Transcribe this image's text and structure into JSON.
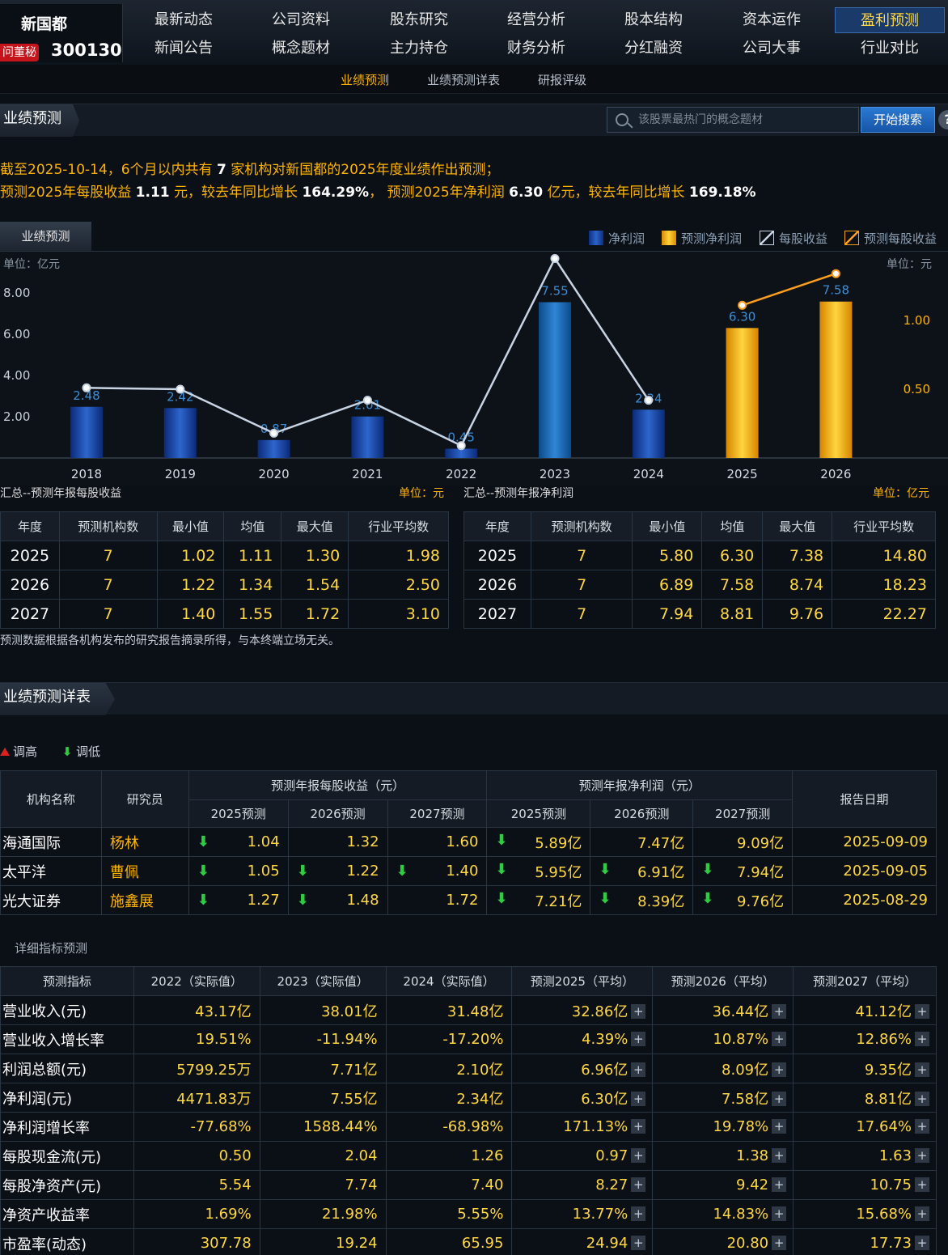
{
  "stock": {
    "name": "新国都",
    "badge": "问董秘",
    "code": "300130"
  },
  "nav": {
    "row1": [
      "最新动态",
      "公司资料",
      "股东研究",
      "经营分析",
      "股本结构",
      "资本运作",
      "盈利预测"
    ],
    "row2": [
      "新闻公告",
      "概念题材",
      "主力持仓",
      "财务分析",
      "分红融资",
      "公司大事",
      "行业对比"
    ],
    "active": "盈利预测"
  },
  "subnav": [
    "业绩预测",
    "业绩预测详表",
    "研报评级"
  ],
  "section1": {
    "title": "业绩预测"
  },
  "search": {
    "placeholder": "该股票最热门的概念题材",
    "button": "开始搜索",
    "help": "?"
  },
  "summary": {
    "l1a": "截至2025-10-14，6个月以内共有 ",
    "l1b": "7",
    "l1c": " 家机构对新国都的2025年度业绩作出预测；",
    "l2a": "预测2025年每股收益 ",
    "l2b": "1.11",
    "l2c": " 元，较去年同比增长 ",
    "l2d": "164.29%",
    "l2e": "， 预测2025年净利润 ",
    "l2f": "6.30",
    "l2g": " 亿元，较去年同比增长 ",
    "l2h": "169.18%"
  },
  "chart_tab": "业绩预测",
  "legend": [
    "净利润",
    "预测净利润",
    "每股收益",
    "预测每股收益"
  ],
  "units": {
    "left": "单位：亿元",
    "right": "单位：元"
  },
  "chart_data": {
    "type": "bar",
    "categories": [
      "2018",
      "2019",
      "2020",
      "2021",
      "2022",
      "2023",
      "2024",
      "2025",
      "2026"
    ],
    "series": [
      {
        "name": "净利润",
        "values": [
          2.48,
          2.42,
          0.87,
          2.01,
          0.45,
          7.55,
          2.34,
          null,
          null
        ],
        "color": "#1446a8"
      },
      {
        "name": "预测净利润",
        "values": [
          null,
          null,
          null,
          null,
          null,
          null,
          null,
          6.3,
          7.58
        ],
        "color": "#f5b300"
      },
      {
        "name": "每股收益",
        "values": [
          0.51,
          0.5,
          0.18,
          0.42,
          0.09,
          1.45,
          0.42,
          null,
          null
        ],
        "color": "#c8d4e3",
        "axis": "right"
      },
      {
        "name": "预测每股收益",
        "values": [
          null,
          null,
          null,
          null,
          null,
          null,
          null,
          1.11,
          1.34
        ],
        "color": "#ff9e1b",
        "axis": "right"
      }
    ],
    "yticks_left": [
      "8.00",
      "6.00",
      "4.00",
      "2.00"
    ],
    "yticks_right": [
      "1.00",
      "0.50"
    ],
    "ylim_left": [
      0,
      10
    ],
    "ylim_right": [
      0,
      1.5
    ]
  },
  "eps_table": {
    "caption": "汇总--预测年报每股收益",
    "unit": "单位：元",
    "headers": [
      "年度",
      "预测机构数",
      "最小值",
      "均值",
      "最大值",
      "行业平均数"
    ],
    "rows": [
      [
        "2025",
        "7",
        "1.02",
        "1.11",
        "1.30",
        "1.98"
      ],
      [
        "2026",
        "7",
        "1.22",
        "1.34",
        "1.54",
        "2.50"
      ],
      [
        "2027",
        "7",
        "1.40",
        "1.55",
        "1.72",
        "3.10"
      ]
    ]
  },
  "np_table": {
    "caption": "汇总--预测年报净利润",
    "unit": "单位：亿元",
    "headers": [
      "年度",
      "预测机构数",
      "最小值",
      "均值",
      "最大值",
      "行业平均数"
    ],
    "rows": [
      [
        "2025",
        "7",
        "5.80",
        "6.30",
        "7.38",
        "14.80"
      ],
      [
        "2026",
        "7",
        "6.89",
        "7.58",
        "8.74",
        "18.23"
      ],
      [
        "2027",
        "7",
        "7.94",
        "8.81",
        "9.76",
        "22.27"
      ]
    ]
  },
  "disclaimer": "预测数据根据各机构发布的研究报告摘录所得，与本终端立场无关。",
  "section2": {
    "title": "业绩预测详表"
  },
  "legend2": {
    "up": "调高",
    "down": "调低"
  },
  "detail": {
    "h_org": "机构名称",
    "h_res": "研究员",
    "h_eps": "预测年报每股收益（元）",
    "h_np": "预测年报净利润（元）",
    "h_date": "报告日期",
    "sub": [
      "2025预测",
      "2026预测",
      "2027预测",
      "2025预测",
      "2026预测",
      "2027预测"
    ],
    "rows": [
      {
        "org": "海通国际",
        "res": "杨林",
        "vals": [
          "1.04",
          "1.32",
          "1.60",
          "5.89亿",
          "7.47亿",
          "9.09亿"
        ],
        "down": [
          true,
          false,
          false,
          true,
          false,
          false
        ],
        "date": "2025-09-09"
      },
      {
        "org": "太平洋",
        "res": "曹佩",
        "vals": [
          "1.05",
          "1.22",
          "1.40",
          "5.95亿",
          "6.91亿",
          "7.94亿"
        ],
        "down": [
          true,
          true,
          true,
          true,
          true,
          true
        ],
        "date": "2025-09-05"
      },
      {
        "org": "光大证券",
        "res": "施鑫展",
        "vals": [
          "1.27",
          "1.48",
          "1.72",
          "7.21亿",
          "8.39亿",
          "9.76亿"
        ],
        "down": [
          true,
          true,
          false,
          true,
          true,
          true
        ],
        "date": "2025-08-29"
      }
    ]
  },
  "indicator_label": "详细指标预测",
  "indicators": {
    "headers": [
      "预测指标",
      "2022（实际值）",
      "2023（实际值）",
      "2024（实际值）",
      "预测2025（平均）",
      "预测2026（平均）",
      "预测2027（平均）"
    ],
    "rows": [
      [
        "营业收入(元)",
        "43.17亿",
        "38.01亿",
        "31.48亿",
        "32.86亿",
        "36.44亿",
        "41.12亿"
      ],
      [
        "营业收入增长率",
        "19.51%",
        "-11.94%",
        "-17.20%",
        "4.39%",
        "10.87%",
        "12.86%"
      ],
      [
        "利润总额(元)",
        "5799.25万",
        "7.71亿",
        "2.10亿",
        "6.96亿",
        "8.09亿",
        "9.35亿"
      ],
      [
        "净利润(元)",
        "4471.83万",
        "7.55亿",
        "2.34亿",
        "6.30亿",
        "7.58亿",
        "8.81亿"
      ],
      [
        "净利润增长率",
        "-77.68%",
        "1588.44%",
        "-68.98%",
        "171.13%",
        "19.78%",
        "17.64%"
      ],
      [
        "每股现金流(元)",
        "0.50",
        "2.04",
        "1.26",
        "0.97",
        "1.38",
        "1.63"
      ],
      [
        "每股净资产(元)",
        "5.54",
        "7.74",
        "7.40",
        "8.27",
        "9.42",
        "10.75"
      ],
      [
        "净资产收益率",
        "1.69%",
        "21.98%",
        "5.55%",
        "13.77%",
        "14.83%",
        "15.68%"
      ],
      [
        "市盈率(动态)",
        "307.78",
        "19.24",
        "65.95",
        "24.94",
        "20.80",
        "17.73"
      ]
    ]
  }
}
